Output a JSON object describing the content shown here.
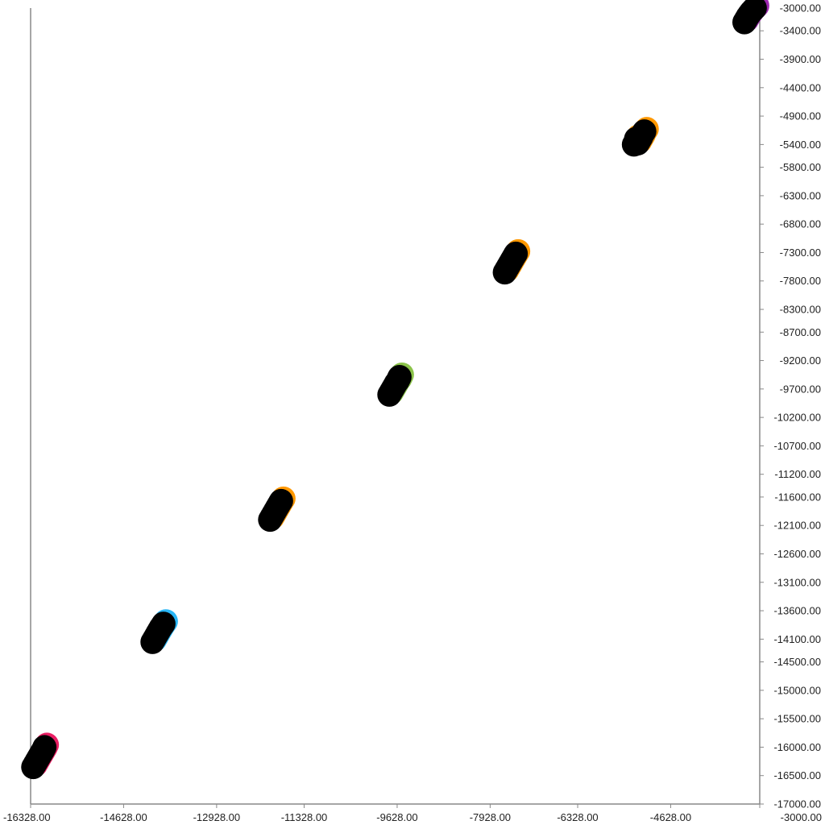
{
  "chart_data": {
    "type": "scatter",
    "title": "",
    "xlabel": "",
    "ylabel": "",
    "xlim": [
      -16328,
      -3000
    ],
    "ylim": [
      -17000,
      -3000
    ],
    "grid": false,
    "legend": "none",
    "x_ticks": [
      {
        "value": -16328,
        "label": "-16328.00"
      },
      {
        "value": -14628,
        "label": "-14628.00"
      },
      {
        "value": -12928,
        "label": "-12928.00"
      },
      {
        "value": -11328,
        "label": "-11328.00"
      },
      {
        "value": -9628,
        "label": "-9628.00"
      },
      {
        "value": -7928,
        "label": "-7928.00"
      },
      {
        "value": -6328,
        "label": "-6328.00"
      },
      {
        "value": -4628,
        "label": "-4628.00"
      },
      {
        "value": -3000,
        "label": "-3000.00"
      }
    ],
    "y_ticks": [
      {
        "value": -3000,
        "label": "-3000.00"
      },
      {
        "value": -3400,
        "label": "-3400.00"
      },
      {
        "value": -3900,
        "label": "-3900.00"
      },
      {
        "value": -4400,
        "label": "-4400.00"
      },
      {
        "value": -4900,
        "label": "-4900.00"
      },
      {
        "value": -5400,
        "label": "-5400.00"
      },
      {
        "value": -5800,
        "label": "-5800.00"
      },
      {
        "value": -6300,
        "label": "-6300.00"
      },
      {
        "value": -6800,
        "label": "-6800.00"
      },
      {
        "value": -7300,
        "label": "-7300.00"
      },
      {
        "value": -7800,
        "label": "-7800.00"
      },
      {
        "value": -8300,
        "label": "-8300.00"
      },
      {
        "value": -8700,
        "label": "-8700.00"
      },
      {
        "value": -9200,
        "label": "-9200.00"
      },
      {
        "value": -9700,
        "label": "-9700.00"
      },
      {
        "value": -10200,
        "label": "-10200.00"
      },
      {
        "value": -10700,
        "label": "-10700.00"
      },
      {
        "value": -11200,
        "label": "-11200.00"
      },
      {
        "value": -11600,
        "label": "-11600.00"
      },
      {
        "value": -12100,
        "label": "-12100.00"
      },
      {
        "value": -12600,
        "label": "-12600.00"
      },
      {
        "value": -13100,
        "label": "-13100.00"
      },
      {
        "value": -13600,
        "label": "-13600.00"
      },
      {
        "value": -14100,
        "label": "-14100.00"
      },
      {
        "value": -14500,
        "label": "-14500.00"
      },
      {
        "value": -15000,
        "label": "-15000.00"
      },
      {
        "value": -15500,
        "label": "-15500.00"
      },
      {
        "value": -16000,
        "label": "-16000.00"
      },
      {
        "value": -16500,
        "label": "-16500.00"
      },
      {
        "value": -17000,
        "label": "-17000.00"
      }
    ],
    "point_color": "#000000",
    "axis_color": "#888888",
    "series": [
      {
        "color": "#e91e63",
        "points": [
          {
            "x": -16280,
            "y": -16350
          },
          {
            "x": -16250,
            "y": -16300
          },
          {
            "x": -16220,
            "y": -16250
          },
          {
            "x": -16190,
            "y": -16200
          },
          {
            "x": -16160,
            "y": -16150
          },
          {
            "x": -16130,
            "y": -16100
          },
          {
            "x": -16100,
            "y": -16050
          },
          {
            "x": -16075,
            "y": -16000
          }
        ]
      },
      {
        "color": "#29b6f6",
        "points": [
          {
            "x": -14100,
            "y": -14150
          },
          {
            "x": -14070,
            "y": -14100
          },
          {
            "x": -14040,
            "y": -14050
          },
          {
            "x": -14010,
            "y": -14000
          },
          {
            "x": -13980,
            "y": -13950
          },
          {
            "x": -13950,
            "y": -13900
          },
          {
            "x": -13920,
            "y": -13860
          },
          {
            "x": -13900,
            "y": -13830
          }
        ]
      },
      {
        "color": "#ff9800",
        "points": [
          {
            "x": -11950,
            "y": -12000
          },
          {
            "x": -11920,
            "y": -11950
          },
          {
            "x": -11890,
            "y": -11900
          },
          {
            "x": -11860,
            "y": -11850
          },
          {
            "x": -11830,
            "y": -11800
          },
          {
            "x": -11800,
            "y": -11750
          },
          {
            "x": -11770,
            "y": -11700
          },
          {
            "x": -11750,
            "y": -11670
          }
        ]
      },
      {
        "color": "#8bc34a",
        "points": [
          {
            "x": -9770,
            "y": -9800
          },
          {
            "x": -9740,
            "y": -9750
          },
          {
            "x": -9710,
            "y": -9700
          },
          {
            "x": -9680,
            "y": -9650
          },
          {
            "x": -9650,
            "y": -9600
          },
          {
            "x": -9620,
            "y": -9560
          },
          {
            "x": -9600,
            "y": -9520
          },
          {
            "x": -9585,
            "y": -9490
          }
        ]
      },
      {
        "color": "#ff9800",
        "points": [
          {
            "x": -7660,
            "y": -7650
          },
          {
            "x": -7630,
            "y": -7600
          },
          {
            "x": -7600,
            "y": -7550
          },
          {
            "x": -7570,
            "y": -7500
          },
          {
            "x": -7540,
            "y": -7450
          },
          {
            "x": -7510,
            "y": -7400
          },
          {
            "x": -7480,
            "y": -7350
          },
          {
            "x": -7460,
            "y": -7320
          }
        ]
      },
      {
        "color": "#ff9800",
        "points": [
          {
            "x": -5300,
            "y": -5400
          },
          {
            "x": -5260,
            "y": -5300
          },
          {
            "x": -5230,
            "y": -5380
          },
          {
            "x": -5200,
            "y": -5330
          },
          {
            "x": -5170,
            "y": -5280
          },
          {
            "x": -5150,
            "y": -5230
          },
          {
            "x": -5130,
            "y": -5200
          },
          {
            "x": -5110,
            "y": -5170
          }
        ]
      },
      {
        "color": "#9c27b0",
        "points": [
          {
            "x": -3280,
            "y": -3250
          },
          {
            "x": -3250,
            "y": -3200
          },
          {
            "x": -3220,
            "y": -3150
          },
          {
            "x": -3190,
            "y": -3110
          },
          {
            "x": -3160,
            "y": -3070
          },
          {
            "x": -3130,
            "y": -3040
          },
          {
            "x": -3110,
            "y": -3020
          },
          {
            "x": -3090,
            "y": -3000
          }
        ]
      }
    ]
  }
}
